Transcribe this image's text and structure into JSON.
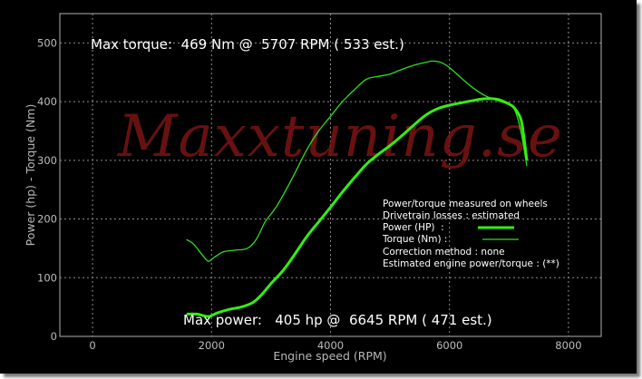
{
  "watermark": "Maxxtuning.se",
  "colors": {
    "power": "#33ee11",
    "torque": "#2fdc22",
    "background": "#000000",
    "grid": "#8c8c8c",
    "watermark": "#7a1414"
  },
  "chart_data": {
    "type": "line",
    "title": "",
    "xlabel": "Engine speed (RPM)",
    "ylabel": "Power (hp) - Torque (Nm)",
    "xlim": [
      -550,
      8550
    ],
    "ylim": [
      0,
      550
    ],
    "xticks": [
      0,
      2000,
      4000,
      6000,
      8000
    ],
    "yticks": [
      0,
      100,
      200,
      300,
      400,
      500
    ],
    "grid": true,
    "headlines": {
      "max_torque": "Max torque:  469 Nm @  5707 RPM ( 533 est.)",
      "max_power": "Max power:   405 hp @  6645 RPM ( 471 est.)"
    },
    "legend": {
      "placement": "right",
      "lines": [
        "Power/torque measured on wheels",
        "Drivetrain losses : estimated",
        "Power (HP)  :",
        "Torque (Nm) :",
        "Correction method : none",
        "Estimated engine power/torque : (**)"
      ]
    },
    "series": [
      {
        "name": "Power (HP)",
        "x": [
          1580,
          1750,
          1950,
          2100,
          2300,
          2500,
          2700,
          2850,
          3000,
          3200,
          3400,
          3600,
          3800,
          4000,
          4200,
          4400,
          4600,
          4800,
          5000,
          5200,
          5400,
          5600,
          5800,
          6000,
          6200,
          6400,
          6600,
          6800,
          7000,
          7100,
          7200,
          7250,
          7300
        ],
        "y": [
          38,
          38,
          34,
          40,
          46,
          50,
          58,
          72,
          90,
          112,
          140,
          170,
          195,
          220,
          246,
          270,
          293,
          310,
          325,
          342,
          360,
          377,
          388,
          394,
          398,
          402,
          405,
          404,
          396,
          388,
          370,
          340,
          300
        ]
      },
      {
        "name": "Torque (Nm)",
        "x": [
          1580,
          1700,
          1850,
          1950,
          2050,
          2200,
          2400,
          2600,
          2750,
          2900,
          3050,
          3200,
          3400,
          3600,
          3800,
          4000,
          4200,
          4400,
          4600,
          4800,
          5000,
          5200,
          5400,
          5600,
          5707,
          5850,
          6000,
          6200,
          6400,
          6600,
          6800,
          7000,
          7100,
          7200,
          7300
        ],
        "y": [
          165,
          157,
          138,
          128,
          135,
          144,
          147,
          150,
          165,
          195,
          215,
          240,
          278,
          318,
          350,
          375,
          400,
          420,
          438,
          443,
          447,
          455,
          462,
          467,
          469,
          467,
          458,
          440,
          423,
          410,
          402,
          395,
          385,
          350,
          290
        ]
      }
    ]
  }
}
